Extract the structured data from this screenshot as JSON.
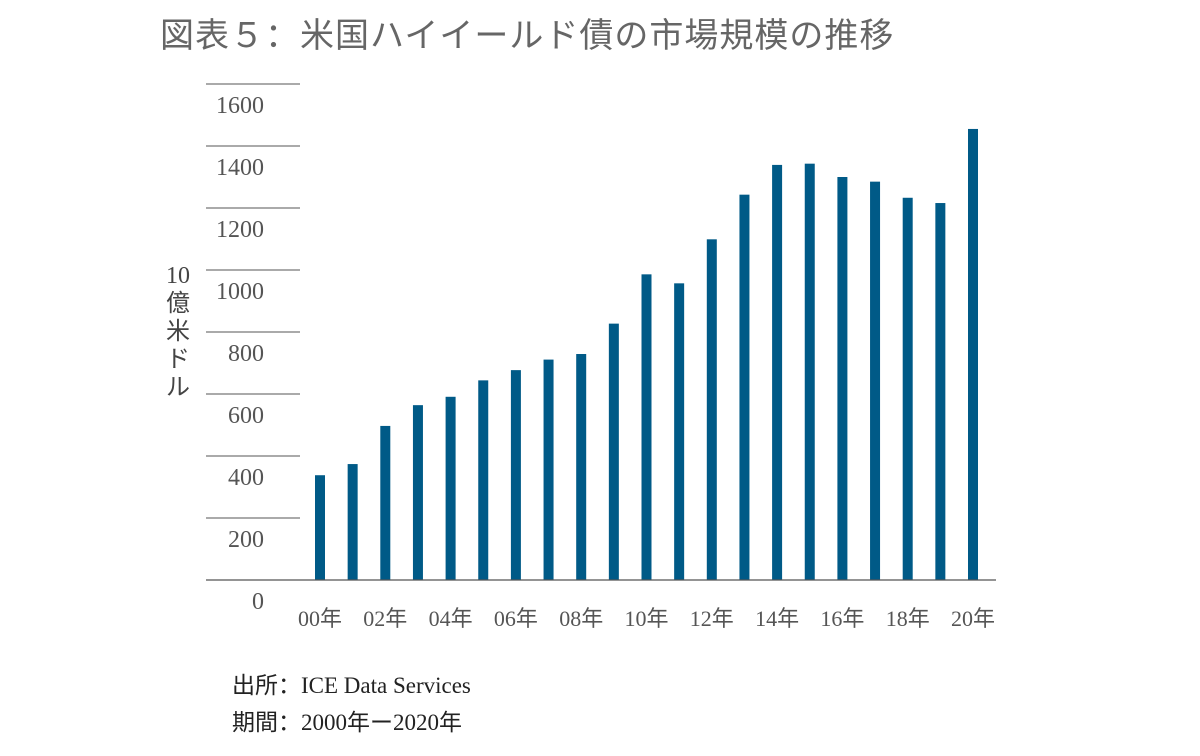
{
  "title": "図表５：米国ハイイールド債の市場規模の推移",
  "source": "出所：ICE Data Services",
  "period": "期間：2000年ー2020年",
  "chart_data": {
    "type": "bar",
    "title": "図表５：米国ハイイールド債の市場規模の推移",
    "ylabel": "10億米ドル",
    "xlabel": "",
    "ylim": [
      0,
      1600
    ],
    "yticks": [
      "0",
      "200",
      "400",
      "600",
      "800",
      "1000",
      "1200",
      "1400",
      "1600"
    ],
    "categories": [
      "00年",
      "01年",
      "02年",
      "03年",
      "04年",
      "05年",
      "06年",
      "07年",
      "08年",
      "09年",
      "10年",
      "11年",
      "12年",
      "13年",
      "14年",
      "15年",
      "16年",
      "17年",
      "18年",
      "19年",
      "20年"
    ],
    "xtick_labels": [
      "00年",
      "02年",
      "04年",
      "06年",
      "08年",
      "10年",
      "12年",
      "14年",
      "16年",
      "18年",
      "20年"
    ],
    "values": [
      338,
      374,
      497,
      564,
      591,
      644,
      677,
      711,
      729,
      827,
      986,
      957,
      1099,
      1243,
      1339,
      1343,
      1300,
      1285,
      1233,
      1216,
      1455
    ],
    "bar_color": "#005a87",
    "grid": true
  }
}
